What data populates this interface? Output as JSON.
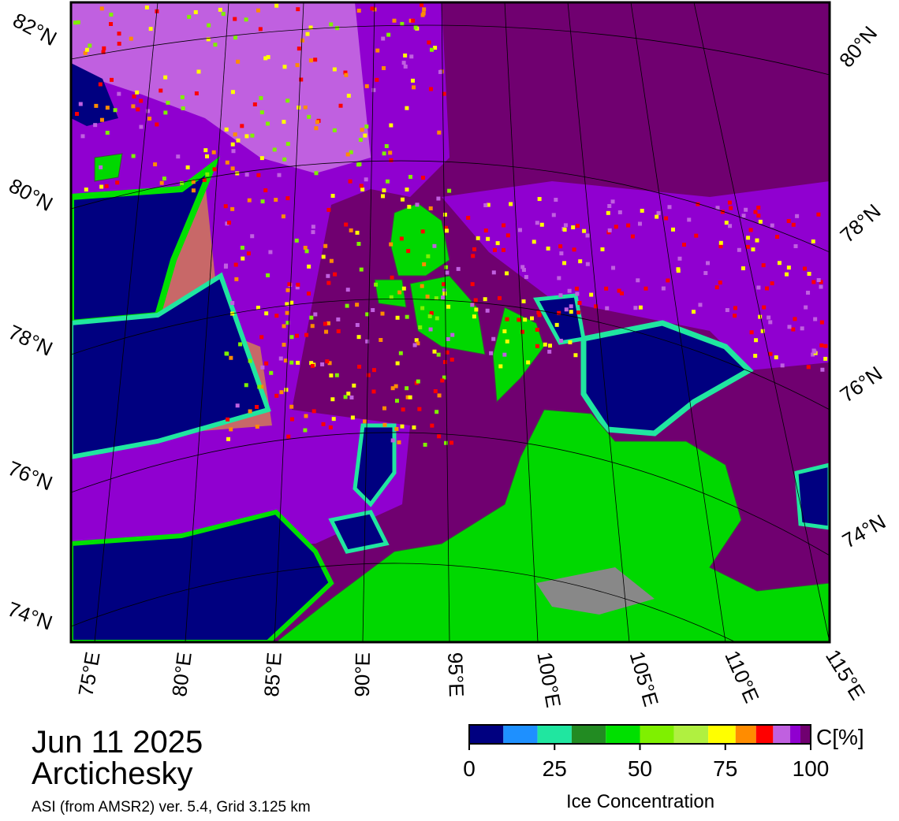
{
  "map": {
    "lat_labels_left": [
      "82°N",
      "80°N",
      "78°N",
      "76°N",
      "74°N"
    ],
    "lat_labels_right": [
      "80°N",
      "78°N",
      "76°N",
      "74°N"
    ],
    "lon_labels": [
      "75°E",
      "80°E",
      "85°E",
      "90°E",
      "95°E",
      "100°E",
      "105°E",
      "110°E",
      "115°E"
    ]
  },
  "caption": {
    "date": "Jun 11 2025",
    "region": "Arctichesky",
    "source": "ASI (from AMSR2) ver. 5.4,  Grid 3.125 km"
  },
  "colorbar": {
    "colors": [
      "#000080",
      "#1e90ff",
      "#20e6a0",
      "#228b22",
      "#00e000",
      "#7ff000",
      "#b0f040",
      "#ffff00",
      "#ff8c00",
      "#ff0000",
      "#c060e0",
      "#9000d0",
      "#700070"
    ],
    "bins": [
      0,
      10,
      20,
      30,
      40,
      50,
      60,
      70,
      78,
      84,
      89,
      94,
      97,
      100
    ],
    "ticks": [
      0,
      25,
      50,
      75,
      100
    ],
    "unit": "C[%]",
    "label": "Ice Concentration"
  }
}
